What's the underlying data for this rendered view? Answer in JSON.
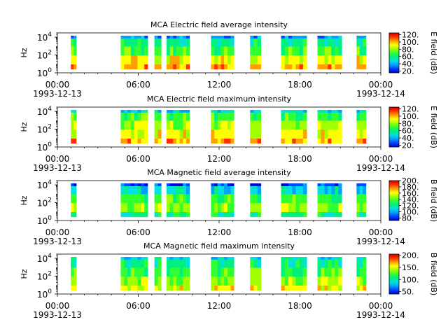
{
  "figure": {
    "background": "#ffffff",
    "colormap": [
      "#0000d0",
      "#0040ff",
      "#00a0ff",
      "#00e0e0",
      "#00f080",
      "#30ff30",
      "#a0ff00",
      "#ffff00",
      "#ffa000",
      "#ff3000",
      "#d00000"
    ]
  },
  "chart_data": [
    {
      "type": "heatmap",
      "title": "MCA  Electric field average intensity",
      "ylabel": "Hz",
      "y_scale": "log",
      "ylim": [
        1,
        30000
      ],
      "y_ticks": [
        {
          "value": 1,
          "base": "10",
          "exp": "0"
        },
        {
          "value": 100,
          "base": "10",
          "exp": "2"
        },
        {
          "value": 10000,
          "base": "10",
          "exp": "4"
        }
      ],
      "xlim": [
        "1993-12-13 00:00",
        "1993-12-14 00:00"
      ],
      "x_ticks": [
        {
          "hour": 0,
          "time": "00:00",
          "date": "1993-12-13"
        },
        {
          "hour": 6,
          "time": "06:00",
          "date": ""
        },
        {
          "hour": 12,
          "time": "12:00",
          "date": ""
        },
        {
          "hour": 18,
          "time": "18:00",
          "date": ""
        },
        {
          "hour": 24,
          "time": "00:00",
          "date": "1993-12-14"
        }
      ],
      "data_hours": [
        [
          1,
          1.4
        ],
        [
          4.7,
          6.7
        ],
        [
          7.2,
          7.7
        ],
        [
          8.1,
          9.8
        ],
        [
          11.4,
          13.1
        ],
        [
          14.3,
          15.1
        ],
        [
          16.6,
          18.5
        ],
        [
          19.3,
          21.1
        ],
        [
          22.2,
          22.9
        ]
      ],
      "mean_band_colors": [
        {
          "freq_hz": 3,
          "color": "#ffa000"
        },
        {
          "freq_hz": 30,
          "color": "#ffff00"
        },
        {
          "freq_hz": 300,
          "color": "#30ff30"
        },
        {
          "freq_hz": 3000,
          "color": "#00f080"
        },
        {
          "freq_hz": 20000,
          "color": "#00a0ff"
        }
      ],
      "colorbar": {
        "label": "E field (dB)",
        "range": [
          15,
          125
        ],
        "ticks": [
          "20.",
          "40.",
          "60.",
          "80.",
          "100.",
          "120."
        ],
        "tick_values": [
          20,
          40,
          60,
          80,
          100,
          120
        ]
      }
    },
    {
      "type": "heatmap",
      "title": "MCA  Electric field maximum intensity",
      "ylabel": "Hz",
      "y_scale": "log",
      "ylim": [
        1,
        30000
      ],
      "y_ticks": [
        {
          "value": 1,
          "base": "10",
          "exp": "0"
        },
        {
          "value": 100,
          "base": "10",
          "exp": "2"
        },
        {
          "value": 10000,
          "base": "10",
          "exp": "4"
        }
      ],
      "xlim": [
        "1993-12-13 00:00",
        "1993-12-14 00:00"
      ],
      "x_ticks": [
        {
          "hour": 0,
          "time": "00:00",
          "date": "1993-12-13"
        },
        {
          "hour": 6,
          "time": "06:00",
          "date": ""
        },
        {
          "hour": 12,
          "time": "12:00",
          "date": ""
        },
        {
          "hour": 18,
          "time": "18:00",
          "date": ""
        },
        {
          "hour": 24,
          "time": "00:00",
          "date": "1993-12-14"
        }
      ],
      "data_hours": [
        [
          1,
          1.4
        ],
        [
          4.7,
          6.7
        ],
        [
          7.2,
          7.7
        ],
        [
          8.1,
          9.8
        ],
        [
          11.4,
          13.1
        ],
        [
          14.3,
          15.1
        ],
        [
          16.6,
          18.5
        ],
        [
          19.3,
          21.1
        ],
        [
          22.2,
          22.9
        ]
      ],
      "mean_band_colors": [
        {
          "freq_hz": 3,
          "color": "#ffa000"
        },
        {
          "freq_hz": 30,
          "color": "#ffff00"
        },
        {
          "freq_hz": 300,
          "color": "#a0ff00"
        },
        {
          "freq_hz": 3000,
          "color": "#30ff30"
        },
        {
          "freq_hz": 20000,
          "color": "#00e0e0"
        }
      ],
      "colorbar": {
        "label": "E field (dB)",
        "range": [
          15,
          125
        ],
        "ticks": [
          "20.",
          "40.",
          "60.",
          "80.",
          "100.",
          "120."
        ],
        "tick_values": [
          20,
          40,
          60,
          80,
          100,
          120
        ]
      }
    },
    {
      "type": "heatmap",
      "title": "MCA  Magnetic field average intensity",
      "ylabel": "Hz",
      "y_scale": "log",
      "ylim": [
        1,
        30000
      ],
      "y_ticks": [
        {
          "value": 1,
          "base": "10",
          "exp": "0"
        },
        {
          "value": 100,
          "base": "10",
          "exp": "2"
        },
        {
          "value": 10000,
          "base": "10",
          "exp": "4"
        }
      ],
      "xlim": [
        "1993-12-13 00:00",
        "1993-12-14 00:00"
      ],
      "x_ticks": [
        {
          "hour": 0,
          "time": "00:00",
          "date": "1993-12-13"
        },
        {
          "hour": 6,
          "time": "06:00",
          "date": ""
        },
        {
          "hour": 12,
          "time": "12:00",
          "date": ""
        },
        {
          "hour": 18,
          "time": "18:00",
          "date": ""
        },
        {
          "hour": 24,
          "time": "00:00",
          "date": "1993-12-14"
        }
      ],
      "data_hours": [
        [
          1,
          1.4
        ],
        [
          4.7,
          6.7
        ],
        [
          7.2,
          7.7
        ],
        [
          8.1,
          9.8
        ],
        [
          11.4,
          13.1
        ],
        [
          14.3,
          15.1
        ],
        [
          16.6,
          18.5
        ],
        [
          19.3,
          21.1
        ],
        [
          22.2,
          22.9
        ]
      ],
      "mean_band_colors": [
        {
          "freq_hz": 3,
          "color": "#00f080"
        },
        {
          "freq_hz": 30,
          "color": "#a0ff00"
        },
        {
          "freq_hz": 300,
          "color": "#30ff30"
        },
        {
          "freq_hz": 3000,
          "color": "#00e0e0"
        },
        {
          "freq_hz": 20000,
          "color": "#0040ff"
        }
      ],
      "colorbar": {
        "label": "B field (dB)",
        "range": [
          72,
          200
        ],
        "ticks": [
          "80.",
          "100.",
          "120.",
          "140.",
          "160.",
          "180.",
          "200."
        ],
        "tick_values": [
          80,
          100,
          120,
          140,
          160,
          180,
          200
        ]
      }
    },
    {
      "type": "heatmap",
      "title": "MCA  Magnetic field maximum intensity",
      "ylabel": "Hz",
      "y_scale": "log",
      "ylim": [
        1,
        30000
      ],
      "y_ticks": [
        {
          "value": 1,
          "base": "10",
          "exp": "0"
        },
        {
          "value": 100,
          "base": "10",
          "exp": "2"
        },
        {
          "value": 10000,
          "base": "10",
          "exp": "4"
        }
      ],
      "xlim": [
        "1993-12-13 00:00",
        "1993-12-14 00:00"
      ],
      "x_ticks": [
        {
          "hour": 0,
          "time": "00:00",
          "date": "1993-12-13"
        },
        {
          "hour": 6,
          "time": "06:00",
          "date": ""
        },
        {
          "hour": 12,
          "time": "12:00",
          "date": ""
        },
        {
          "hour": 18,
          "time": "18:00",
          "date": ""
        },
        {
          "hour": 24,
          "time": "00:00",
          "date": "1993-12-14"
        }
      ],
      "data_hours": [
        [
          1,
          1.4
        ],
        [
          4.7,
          6.7
        ],
        [
          7.2,
          7.7
        ],
        [
          8.1,
          9.8
        ],
        [
          11.4,
          13.1
        ],
        [
          14.3,
          15.1
        ],
        [
          16.6,
          18.5
        ],
        [
          19.3,
          21.1
        ],
        [
          22.2,
          22.9
        ]
      ],
      "mean_band_colors": [
        {
          "freq_hz": 3,
          "color": "#ffff00"
        },
        {
          "freq_hz": 30,
          "color": "#a0ff00"
        },
        {
          "freq_hz": 300,
          "color": "#30ff30"
        },
        {
          "freq_hz": 3000,
          "color": "#00f080"
        },
        {
          "freq_hz": 20000,
          "color": "#00e0e0"
        }
      ],
      "colorbar": {
        "label": "B field (dB)",
        "range": [
          40,
          205
        ],
        "ticks": [
          "50.",
          "100.",
          "150.",
          "200."
        ],
        "tick_values": [
          50,
          100,
          150,
          200
        ]
      }
    }
  ]
}
